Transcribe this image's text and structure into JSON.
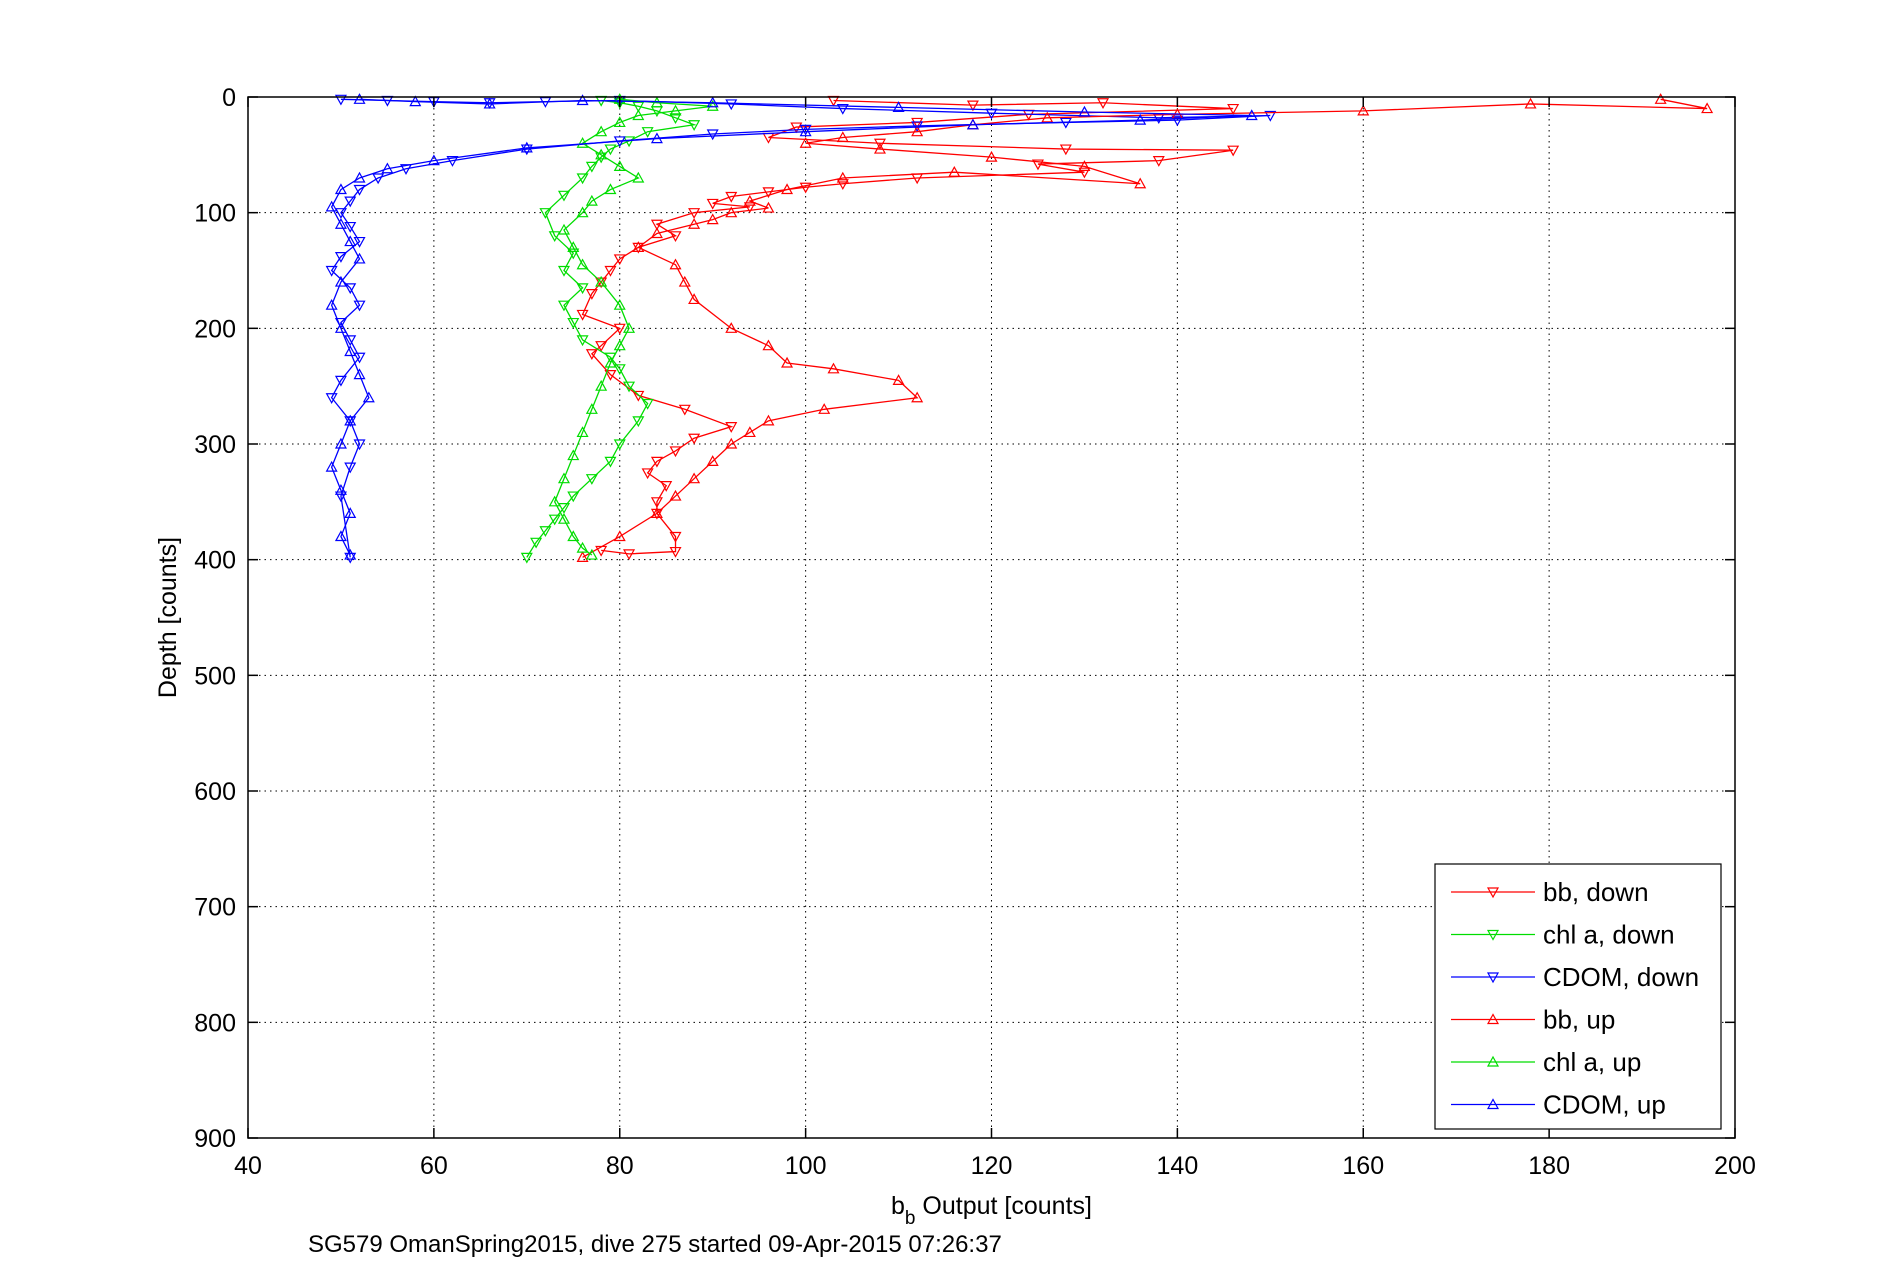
{
  "chart_data": {
    "type": "scatter",
    "title": "",
    "xlabel": "b",
    "xlabel_sub": "b",
    "xlabel_rest": " Output [counts]",
    "ylabel": "Depth [counts]",
    "caption": "SG579 OmanSpring2015, dive 275 started 09-Apr-2015 07:26:37",
    "xlim": [
      40,
      200
    ],
    "ylim": [
      0,
      900
    ],
    "y_reversed": true,
    "grid": true,
    "x_ticks": [
      "40",
      "60",
      "80",
      "100",
      "120",
      "140",
      "160",
      "180",
      "200"
    ],
    "y_ticks": [
      "0",
      "100",
      "200",
      "300",
      "400",
      "500",
      "600",
      "700",
      "800",
      "900"
    ],
    "legend_position": "bottom-right",
    "series": [
      {
        "name": "bb, down",
        "color": "#ff0000",
        "marker": "triangle-down",
        "x": [
          103,
          118,
          132,
          146,
          124,
          112,
          99,
          96,
          108,
          128,
          146,
          138,
          125,
          130,
          112,
          104,
          100,
          96,
          92,
          90,
          94,
          88,
          84,
          86,
          82,
          80,
          79,
          78,
          77,
          76,
          80,
          78,
          77,
          79,
          82,
          87,
          92,
          88,
          86,
          84,
          83,
          85,
          84,
          84,
          86,
          86,
          81,
          78
        ],
        "y": [
          3,
          7,
          5,
          10,
          15,
          22,
          26,
          35,
          40,
          45,
          46,
          55,
          58,
          65,
          70,
          75,
          78,
          82,
          86,
          92,
          95,
          100,
          110,
          120,
          130,
          140,
          150,
          160,
          170,
          188,
          200,
          215,
          222,
          240,
          258,
          270,
          285,
          295,
          306,
          315,
          325,
          336,
          350,
          360,
          380,
          393,
          395,
          392
        ]
      },
      {
        "name": "chl a, down",
        "color": "#00dd00",
        "marker": "triangle-down",
        "x": [
          78,
          80,
          82,
          84,
          86,
          88,
          83,
          81,
          79,
          78,
          77,
          76,
          74,
          72,
          73,
          75,
          74,
          76,
          74,
          75,
          76,
          79,
          80,
          81,
          83,
          82,
          80,
          79,
          77,
          75,
          74,
          73,
          72,
          71,
          70
        ],
        "y": [
          3,
          5,
          8,
          12,
          18,
          24,
          30,
          38,
          45,
          52,
          60,
          70,
          85,
          100,
          120,
          135,
          150,
          165,
          180,
          195,
          210,
          225,
          235,
          250,
          265,
          280,
          300,
          315,
          330,
          345,
          355,
          365,
          375,
          385,
          398
        ]
      },
      {
        "name": "CDOM, down",
        "color": "#0000ff",
        "marker": "triangle-down",
        "x": [
          50,
          55,
          60,
          66,
          72,
          80,
          92,
          104,
          120,
          138,
          150,
          140,
          128,
          112,
          100,
          90,
          80,
          70,
          62,
          57,
          54,
          52,
          51,
          50,
          51,
          52,
          50,
          49,
          51,
          52,
          50,
          51,
          52,
          50,
          49,
          51,
          52,
          51,
          50,
          51
        ],
        "y": [
          2,
          3,
          4,
          5,
          4,
          3,
          6,
          10,
          14,
          18,
          16,
          20,
          22,
          25,
          28,
          32,
          38,
          45,
          55,
          62,
          70,
          80,
          90,
          100,
          112,
          125,
          138,
          150,
          165,
          180,
          195,
          210,
          225,
          245,
          260,
          280,
          300,
          320,
          345,
          398
        ]
      },
      {
        "name": "bb, up",
        "color": "#ff0000",
        "marker": "triangle-up",
        "x": [
          192,
          197,
          178,
          160,
          140,
          126,
          118,
          112,
          104,
          100,
          108,
          120,
          130,
          136,
          116,
          104,
          98,
          94,
          96,
          92,
          90,
          88,
          84,
          82,
          86,
          87,
          88,
          92,
          96,
          98,
          103,
          110,
          112,
          102,
          96,
          94,
          92,
          90,
          88,
          86,
          84,
          80,
          76
        ],
        "y": [
          2,
          10,
          6,
          12,
          15,
          18,
          24,
          30,
          35,
          40,
          45,
          52,
          60,
          75,
          65,
          70,
          80,
          90,
          96,
          100,
          106,
          110,
          118,
          130,
          145,
          160,
          175,
          200,
          215,
          230,
          235,
          245,
          260,
          270,
          280,
          290,
          300,
          315,
          330,
          345,
          360,
          380,
          398
        ]
      },
      {
        "name": "chl a, up",
        "color": "#00dd00",
        "marker": "triangle-up",
        "x": [
          80,
          84,
          90,
          86,
          82,
          80,
          78,
          76,
          78,
          80,
          82,
          79,
          77,
          76,
          74,
          75,
          76,
          78,
          80,
          81,
          80,
          79,
          78,
          77,
          76,
          75,
          74,
          73,
          74,
          75,
          76,
          77
        ],
        "y": [
          2,
          5,
          8,
          12,
          16,
          22,
          30,
          40,
          50,
          60,
          70,
          80,
          90,
          100,
          115,
          130,
          145,
          160,
          180,
          200,
          215,
          230,
          250,
          270,
          290,
          310,
          330,
          350,
          365,
          380,
          390,
          396
        ]
      },
      {
        "name": "CDOM, up",
        "color": "#0000ff",
        "marker": "triangle-up",
        "x": [
          52,
          58,
          66,
          76,
          90,
          110,
          130,
          148,
          136,
          118,
          100,
          84,
          70,
          60,
          55,
          52,
          50,
          49,
          50,
          51,
          52,
          50,
          49,
          50,
          51,
          52,
          53,
          51,
          50,
          49,
          50,
          51,
          50,
          51
        ],
        "y": [
          2,
          4,
          6,
          3,
          5,
          9,
          13,
          16,
          20,
          24,
          30,
          36,
          44,
          55,
          62,
          70,
          80,
          95,
          110,
          125,
          140,
          160,
          180,
          200,
          220,
          240,
          260,
          280,
          300,
          320,
          340,
          360,
          380,
          396
        ]
      }
    ]
  }
}
